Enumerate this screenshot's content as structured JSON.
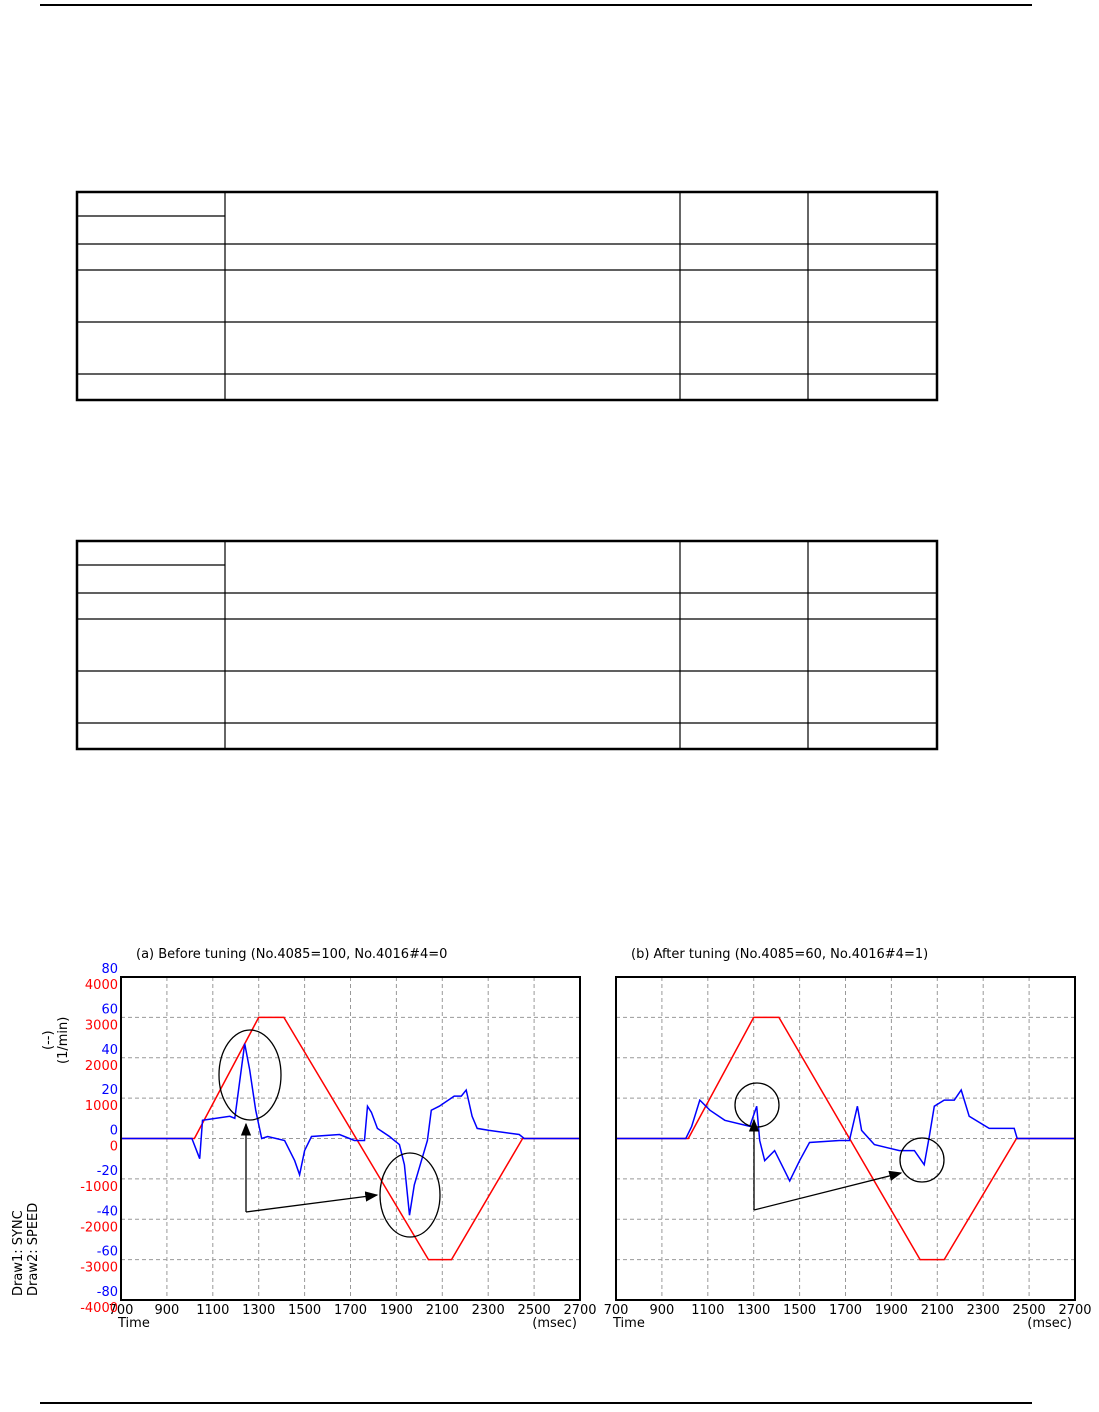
{
  "chart_data": [
    {
      "type": "line",
      "title": "(a) Before tuning (No.4085=100, No.4016#4=0",
      "xlabel": "Time",
      "xunit": "(msec)",
      "ylabel": "Draw1: SYNC",
      "y2label": "Draw2: SPEED",
      "yunit": "(--)",
      "y2unit": "(1/min)",
      "xlim": [
        700,
        2700
      ],
      "xticks": [
        700,
        900,
        1100,
        1300,
        1500,
        1700,
        1900,
        2100,
        2300,
        2500,
        2700
      ],
      "ylim": [
        -80,
        80
      ],
      "yticks": [
        -80,
        -60,
        -40,
        -20,
        0,
        20,
        40,
        60,
        80
      ],
      "y2lim": [
        -4000,
        4000
      ],
      "y2ticks": [
        -4000,
        -3000,
        -2000,
        -1000,
        0,
        1000,
        2000,
        3000,
        4000
      ],
      "ytick_labels": true,
      "grid": true,
      "series": [
        {
          "color": "#ff0000",
          "axis": "y2",
          "x": [
            700,
            1020,
            1300,
            1410,
            2040,
            2140,
            2450,
            2700
          ],
          "values": [
            0,
            0,
            3000,
            3000,
            -3000,
            -3000,
            0,
            0
          ]
        },
        {
          "color": "#0000ff",
          "axis": "y",
          "x": [
            700,
            1009,
            1043,
            1055,
            1174,
            1196,
            1239,
            1261,
            1287,
            1313,
            1339,
            1413,
            1457,
            1478,
            1500,
            1530,
            1652,
            1717,
            1761,
            1774,
            1791,
            1817,
            1870,
            1913,
            1935,
            1957,
            1978,
            2009,
            2035,
            2052,
            2087,
            2152,
            2183,
            2204,
            2230,
            2252,
            2304,
            2435,
            2457,
            2700
          ],
          "values": [
            0,
            0,
            -10,
            9,
            11,
            10,
            47,
            34,
            14,
            0,
            1,
            -1,
            -11,
            -18,
            -6,
            1,
            2,
            -1,
            -1,
            16,
            13,
            5,
            1,
            -3,
            -13,
            -38,
            -23,
            -11,
            -1,
            14,
            16,
            21,
            21,
            24,
            11,
            5,
            4,
            2,
            0,
            0
          ]
        }
      ]
    },
    {
      "type": "line",
      "title": "(b) After tuning (No.4085=60, No.4016#4=1)",
      "xlabel": "Time",
      "xunit": "(msec)",
      "xlim": [
        700,
        2700
      ],
      "xticks": [
        700,
        900,
        1100,
        1300,
        1500,
        1700,
        1900,
        2100,
        2300,
        2500,
        2700
      ],
      "ylim": [
        -80,
        80
      ],
      "yticks": [
        -80,
        -60,
        -40,
        -20,
        0,
        20,
        40,
        60,
        80
      ],
      "y2lim": [
        -4000,
        4000
      ],
      "ytick_labels": false,
      "grid": true,
      "series": [
        {
          "color": "#ff0000",
          "axis": "y2",
          "x": [
            700,
            1015,
            1300,
            1410,
            2025,
            2130,
            2445,
            2700
          ],
          "values": [
            0,
            0,
            3000,
            3000,
            -3000,
            -3000,
            0,
            0
          ]
        },
        {
          "color": "#0000ff",
          "axis": "y",
          "x": [
            700,
            1004,
            1030,
            1065,
            1109,
            1174,
            1283,
            1313,
            1326,
            1348,
            1391,
            1435,
            1457,
            1500,
            1543,
            1674,
            1717,
            1752,
            1770,
            1826,
            1935,
            2000,
            2043,
            2065,
            2087,
            2130,
            2174,
            2204,
            2239,
            2326,
            2435,
            2448,
            2700
          ],
          "values": [
            0,
            0,
            6,
            19,
            14,
            9,
            6,
            16,
            -1,
            -11,
            -6,
            -16,
            -21,
            -11,
            -2,
            -1,
            -1,
            16,
            4,
            -3,
            -6,
            -6,
            -13,
            1,
            16,
            19,
            19,
            24,
            11,
            5,
            5,
            0,
            0
          ]
        }
      ]
    }
  ]
}
